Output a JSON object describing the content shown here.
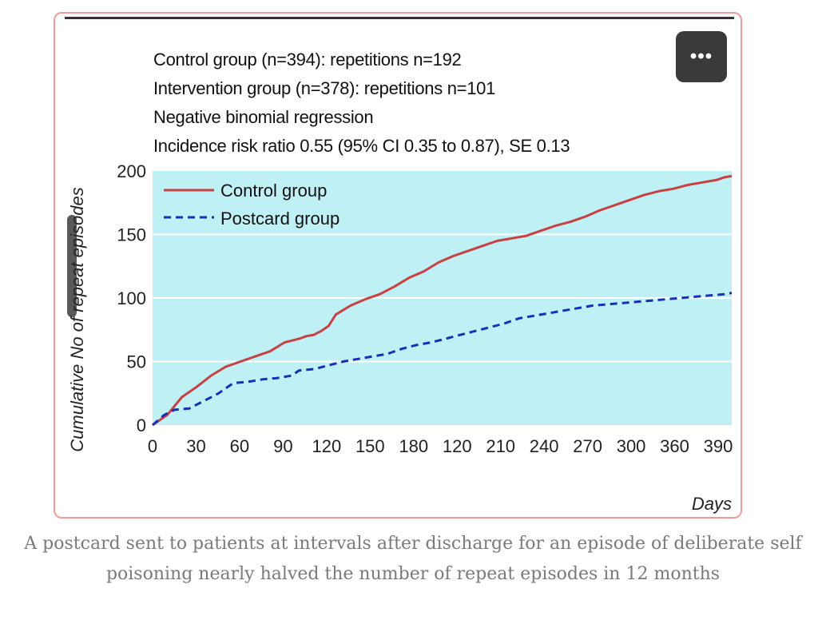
{
  "stats": {
    "line1": "Control group (n=394): repetitions n=192",
    "line2": "Intervention group (n=378): repetitions n=101",
    "line3": "Negative binomial regression",
    "line4": "Incidence risk ratio 0.55 (95% CI 0.35 to 0.87), SE 0.13"
  },
  "more_button": {
    "label": "•••",
    "icon": "more-icon"
  },
  "caption": "A postcard sent to patients at intervals after discharge for an episode of deliberate self poisoning nearly halved the number of repeat episodes in 12 months",
  "colors": {
    "plot_bg": "#bff0f5",
    "control": "#c94040",
    "postcard": "#1a2fb8",
    "border": "#f29a9a"
  },
  "chart_data": {
    "type": "line",
    "title": "",
    "xlabel": "Days",
    "ylabel": "Cumulative No of repeat episodes",
    "x_tick_labels": [
      "0",
      "30",
      "60",
      "90",
      "120",
      "150",
      "180",
      "120",
      "210",
      "240",
      "270",
      "300",
      "360",
      "390"
    ],
    "y_ticks": [
      0,
      50,
      100,
      150,
      200
    ],
    "ylim": [
      0,
      200
    ],
    "xlim": [
      0,
      395
    ],
    "grid": "horizontal",
    "legend": "top-left",
    "series": [
      {
        "name": "Control group",
        "style": "solid",
        "x": [
          0,
          10,
          20,
          30,
          40,
          50,
          60,
          70,
          80,
          90,
          100,
          105,
          110,
          115,
          120,
          125,
          135,
          145,
          155,
          165,
          175,
          185,
          195,
          205,
          215,
          225,
          235,
          245,
          255,
          265,
          275,
          285,
          295,
          305,
          315,
          325,
          335,
          345,
          355,
          365,
          375,
          385,
          390,
          395
        ],
        "y": [
          0,
          8,
          22,
          30,
          39,
          46,
          50,
          54,
          58,
          65,
          68,
          70,
          71,
          74,
          78,
          87,
          94,
          99,
          103,
          109,
          116,
          121,
          128,
          133,
          137,
          141,
          145,
          147,
          149,
          153,
          157,
          160,
          164,
          169,
          173,
          177,
          181,
          184,
          186,
          189,
          191,
          193,
          195,
          196
        ]
      },
      {
        "name": "Postcard group",
        "style": "dashed",
        "x": [
          0,
          8,
          15,
          25,
          35,
          45,
          55,
          65,
          75,
          85,
          95,
          100,
          110,
          120,
          130,
          140,
          150,
          160,
          170,
          180,
          190,
          200,
          210,
          220,
          230,
          240,
          250,
          260,
          270,
          280,
          290,
          300,
          310,
          320,
          330,
          340,
          350,
          360,
          370,
          380,
          390,
          395
        ],
        "y": [
          0,
          8,
          12,
          13,
          19,
          25,
          33,
          34,
          36,
          37,
          39,
          43,
          44,
          47,
          50,
          52,
          54,
          56,
          60,
          63,
          65,
          68,
          71,
          74,
          77,
          80,
          84,
          86,
          88,
          90,
          92,
          94,
          95,
          96,
          97,
          98,
          99,
          100,
          101,
          102,
          103,
          104
        ]
      }
    ]
  }
}
